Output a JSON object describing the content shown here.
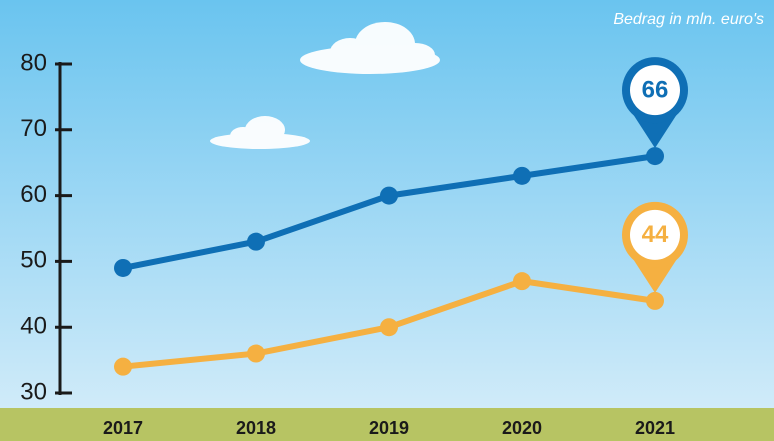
{
  "chart_data": {
    "type": "line",
    "annotation": "Bedrag in mln. euro's",
    "categories": [
      "2017",
      "2018",
      "2019",
      "2020",
      "2021"
    ],
    "series": [
      {
        "color": "#0f6fb5",
        "values": [
          49,
          53,
          60,
          63,
          66
        ]
      },
      {
        "color": "#f5b041",
        "values": [
          34,
          36,
          40,
          47,
          44
        ]
      }
    ],
    "ylim": [
      30,
      80
    ],
    "yticks": [
      30,
      40,
      50,
      60,
      70,
      80
    ]
  }
}
